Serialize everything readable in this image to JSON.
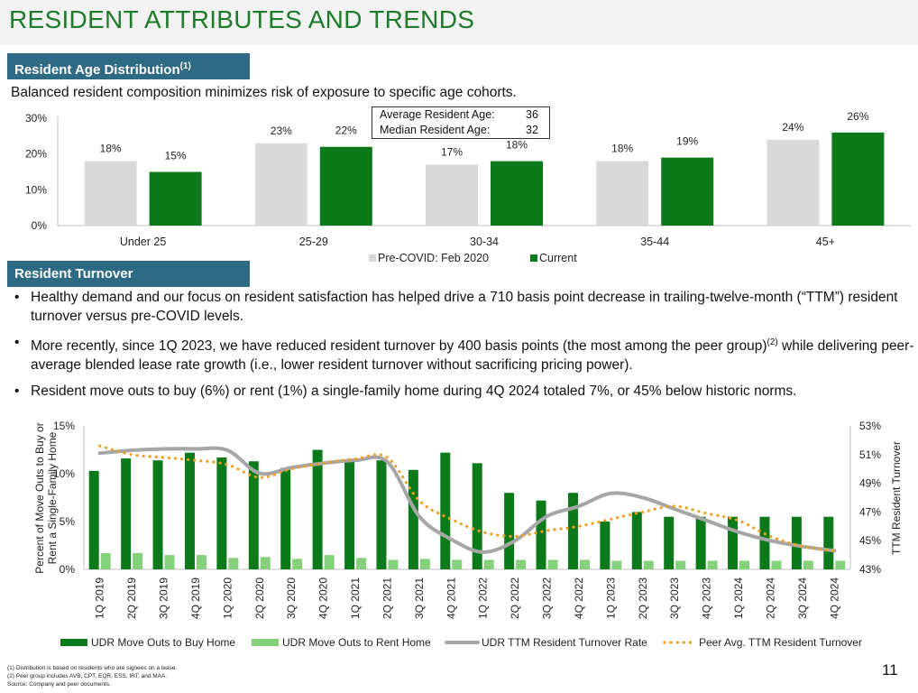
{
  "page": {
    "title": "RESIDENT ATTRIBUTES AND TRENDS",
    "section1_label": "Resident Age Distribution",
    "section1_sup": "(1)",
    "section1_subtitle": "Balanced resident composition minimizes risk of exposure to specific age cohorts.",
    "section2_label": "Resident Turnover",
    "stats": [
      {
        "label": "Average Resident Age:",
        "value": "36"
      },
      {
        "label": "Median Resident Age:",
        "value": "32"
      }
    ],
    "bullets": [
      {
        "text": "Healthy demand and our focus on resident satisfaction has helped drive a 710 basis point decrease in trailing-twelve-month (“TTM”) resident turnover versus pre-COVID levels.",
        "sup": ""
      },
      {
        "text": "More recently, since 1Q 2023, we have reduced resident turnover by 400 basis points (the most among the peer group)",
        "sup": "(2)",
        "after": " while delivering peer-average blended lease rate growth (i.e., lower resident turnover without sacrificing pricing power)."
      },
      {
        "text": "Resident move outs to buy (6%) or rent (1%) a single-family home during 4Q 2024 totaled 7%, or 45% below historic norms.",
        "sup": ""
      }
    ],
    "footnotes": [
      "(1)    Distribution is based on residents who are signees on a lease.",
      "(2)    Peer group includes AVB, CPT, EQR, ESS, IRT, and MAA.",
      "Source:  Company and peer documents."
    ],
    "page_number": "11"
  },
  "colors": {
    "title_green": "#1e7b2a",
    "band_blue": "#2e6a83",
    "dark_green": "#0c7a1b",
    "light_green": "#86d27c",
    "light_gray": "#d9d9d9",
    "line_gray": "#a6a6a6",
    "peer_orange": "#f0a020"
  },
  "chart_data": [
    {
      "type": "bar",
      "categories": [
        "Under 25",
        "25-29",
        "30-34",
        "35-44",
        "45+"
      ],
      "series": [
        {
          "name": "Pre-COVID: Feb 2020",
          "values": [
            18,
            23,
            17,
            18,
            24
          ],
          "labels": [
            "18%",
            "23%",
            "17%",
            "18%",
            "24%"
          ],
          "color": "#d9d9d9"
        },
        {
          "name": "Current",
          "values": [
            15,
            22,
            18,
            19,
            26
          ],
          "labels": [
            "15%",
            "22%",
            "18%",
            "19%",
            "26%"
          ],
          "color": "#0c7a1b"
        }
      ],
      "ylim": [
        0,
        30
      ],
      "yticks": [
        "0%",
        "10%",
        "20%",
        "30%"
      ],
      "legend": "bottom"
    },
    {
      "type": "bar",
      "categories": [
        "1Q 2019",
        "2Q 2019",
        "3Q 2019",
        "4Q 2019",
        "1Q 2020",
        "2Q 2020",
        "3Q 2020",
        "4Q 2020",
        "1Q 2021",
        "2Q 2021",
        "3Q 2021",
        "4Q 2021",
        "1Q 2022",
        "2Q 2022",
        "3Q 2022",
        "4Q 2022",
        "1Q 2023",
        "2Q 2023",
        "3Q 2023",
        "4Q 2023",
        "1Q 2024",
        "2Q 2024",
        "3Q 2024",
        "4Q 2024"
      ],
      "ylabel": "Percent of Move Outs to Buy or Rent a Single-Family Home",
      "y2label": "TTM Resident Turnover",
      "ylim": [
        0,
        15
      ],
      "y2lim": [
        43,
        53
      ],
      "yticks": [
        "0%",
        "5%",
        "10%",
        "15%"
      ],
      "y2ticks": [
        "43%",
        "45%",
        "47%",
        "49%",
        "51%",
        "53%"
      ],
      "legend": "bottom",
      "series": [
        {
          "name": "UDR Move Outs to Buy Home",
          "type": "bar",
          "color": "#0c7a1b",
          "values": [
            10.3,
            11.6,
            11.4,
            12.2,
            11.7,
            11.3,
            10.6,
            12.5,
            11.5,
            11.4,
            10.4,
            12.2,
            11.1,
            8.0,
            7.2,
            8.0,
            5.0,
            6.0,
            5.5,
            5.5,
            5.5,
            5.5,
            5.5,
            5.5
          ]
        },
        {
          "name": "UDR Move Outs to Rent Home",
          "type": "bar",
          "color": "#86d27c",
          "values": [
            1.7,
            1.7,
            1.5,
            1.5,
            1.2,
            1.3,
            1.1,
            1.5,
            1.2,
            1.0,
            1.1,
            1.0,
            1.0,
            1.0,
            1.0,
            1.0,
            0.9,
            0.9,
            0.9,
            0.9,
            0.9,
            0.9,
            0.9,
            0.9
          ]
        },
        {
          "name": "UDR TTM Resident Turnover Rate",
          "type": "line",
          "axis": "right",
          "color": "#a6a6a6",
          "values": [
            51.1,
            51.3,
            51.4,
            51.4,
            51.3,
            49.7,
            50.1,
            50.4,
            50.6,
            50.5,
            46.7,
            45.1,
            44.2,
            45.0,
            46.7,
            47.4,
            48.3,
            48.0,
            47.2,
            46.4,
            45.6,
            45.0,
            44.6,
            44.3
          ]
        },
        {
          "name": "Peer Avg. TTM Resident Turnover",
          "type": "line",
          "dash": "dots",
          "axis": "right",
          "color": "#f0a020",
          "values": [
            51.6,
            51.0,
            50.8,
            50.6,
            50.3,
            49.4,
            50.0,
            50.4,
            50.7,
            50.8,
            47.8,
            46.5,
            45.6,
            45.3,
            45.7,
            46.0,
            46.5,
            47.0,
            47.4,
            46.9,
            46.4,
            45.3,
            44.6,
            44.3
          ]
        }
      ]
    }
  ]
}
